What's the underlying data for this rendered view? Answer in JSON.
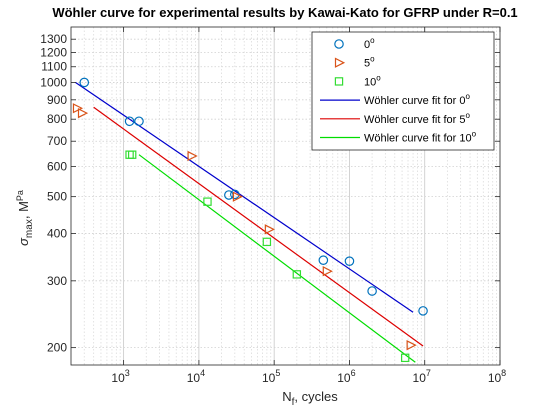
{
  "chart_data": {
    "type": "scatter",
    "title": "Wöhler curve for experimental results by Kawai-Kato for GFRP under R=0.1",
    "xlabel": {
      "main": "N",
      "sub": "f",
      "rest": ", cycles"
    },
    "ylabel": {
      "main": "σ",
      "sub": "max",
      "rest": ", M",
      "sup": "Pa"
    },
    "x_scale": "log",
    "y_scale": "log",
    "xlim": [
      200,
      100000000
    ],
    "ylim": [
      180,
      1400
    ],
    "grid": true,
    "legend_position": "top-right",
    "x_ticks": [
      {
        "value": 1000,
        "base": "10",
        "exp": "3"
      },
      {
        "value": 10000,
        "base": "10",
        "exp": "4"
      },
      {
        "value": 100000,
        "base": "10",
        "exp": "5"
      },
      {
        "value": 1000000,
        "base": "10",
        "exp": "6"
      },
      {
        "value": 10000000,
        "base": "10",
        "exp": "7"
      },
      {
        "value": 100000000,
        "base": "10",
        "exp": "8"
      }
    ],
    "y_ticks": [
      {
        "value": 200,
        "label": "200"
      },
      {
        "value": 300,
        "label": "300"
      },
      {
        "value": 400,
        "label": "400"
      },
      {
        "value": 500,
        "label": "500"
      },
      {
        "value": 600,
        "label": "600"
      },
      {
        "value": 700,
        "label": "700"
      },
      {
        "value": 800,
        "label": "800"
      },
      {
        "value": 900,
        "label": "900"
      },
      {
        "value": 1000,
        "label": "1000"
      },
      {
        "value": 1100,
        "label": "1100"
      },
      {
        "value": 1200,
        "label": "1200"
      },
      {
        "value": 1300,
        "label": "1300"
      }
    ],
    "series": [
      {
        "name": {
          "base": "0",
          "sup": "o"
        },
        "marker": "circle",
        "color": "#0072BD",
        "points": [
          {
            "x": 300,
            "y": 1000
          },
          {
            "x": 1200,
            "y": 790
          },
          {
            "x": 1600,
            "y": 790
          },
          {
            "x": 25000,
            "y": 505
          },
          {
            "x": 30000,
            "y": 507
          },
          {
            "x": 450000,
            "y": 340
          },
          {
            "x": 1000000,
            "y": 338
          },
          {
            "x": 2000000,
            "y": 282
          },
          {
            "x": 9500000,
            "y": 250
          }
        ]
      },
      {
        "name": {
          "base": "5",
          "sup": "o"
        },
        "marker": "triangle-right",
        "color": "#D95319",
        "points": [
          {
            "x": 240,
            "y": 855
          },
          {
            "x": 280,
            "y": 830
          },
          {
            "x": 8000,
            "y": 640
          },
          {
            "x": 32000,
            "y": 500
          },
          {
            "x": 85000,
            "y": 410
          },
          {
            "x": 500000,
            "y": 318
          },
          {
            "x": 6500000,
            "y": 203
          }
        ]
      },
      {
        "name": {
          "base": "10",
          "sup": "o"
        },
        "marker": "square",
        "color": "#33DD33",
        "points": [
          {
            "x": 1200,
            "y": 645
          },
          {
            "x": 1300,
            "y": 645
          },
          {
            "x": 13000,
            "y": 485
          },
          {
            "x": 80000,
            "y": 380
          },
          {
            "x": 200000,
            "y": 312
          },
          {
            "x": 5500000,
            "y": 188
          }
        ]
      }
    ],
    "fits": [
      {
        "name": {
          "base": "Wöhler curve fit for 0",
          "sup": "o"
        },
        "color": "#0000CC",
        "points": [
          {
            "x": 230,
            "y": 1000
          },
          {
            "x": 7000000,
            "y": 248
          }
        ]
      },
      {
        "name": {
          "base": "Wöhler curve fit for 5",
          "sup": "o"
        },
        "color": "#DD0000",
        "points": [
          {
            "x": 400,
            "y": 860
          },
          {
            "x": 9500000,
            "y": 202
          }
        ]
      },
      {
        "name": {
          "base": "Wöhler curve fit for 10",
          "sup": "o"
        },
        "color": "#00DD00",
        "points": [
          {
            "x": 1600,
            "y": 645
          },
          {
            "x": 7500000,
            "y": 183
          }
        ]
      }
    ]
  }
}
